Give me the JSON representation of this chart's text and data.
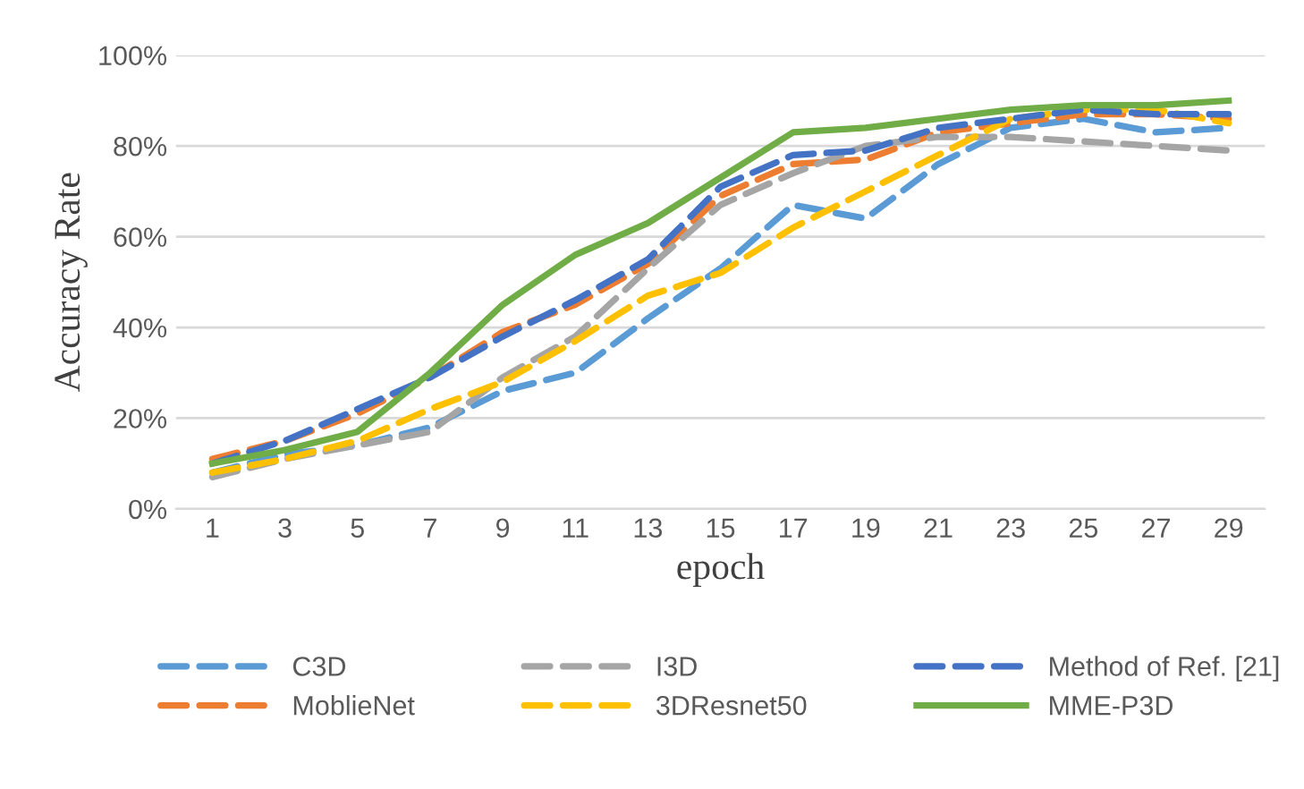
{
  "chart_data": {
    "type": "line",
    "xlabel": "epoch",
    "ylabel": "Accuracy Rate",
    "categories": [
      "1",
      "3",
      "5",
      "7",
      "9",
      "11",
      "13",
      "15",
      "17",
      "19",
      "21",
      "23",
      "25",
      "27",
      "29"
    ],
    "series": [
      {
        "name": "C3D",
        "color": "#5b9bd5",
        "line_style": "dashed",
        "values": [
          8,
          12,
          14,
          18,
          26,
          30,
          42,
          53,
          67,
          64,
          76,
          84,
          86,
          83,
          84
        ]
      },
      {
        "name": "MoblieNet",
        "color": "#ed7d31",
        "line_style": "dashed",
        "values": [
          11,
          15,
          21,
          29,
          39,
          45,
          54,
          69,
          76,
          77,
          83,
          85,
          87,
          87,
          86
        ]
      },
      {
        "name": "I3D",
        "color": "#a5a5a5",
        "line_style": "dashed",
        "values": [
          7,
          11,
          14,
          17,
          29,
          38,
          53,
          67,
          74,
          80,
          82,
          82,
          81,
          80,
          79
        ]
      },
      {
        "name": "3DResnet50",
        "color": "#ffc000",
        "line_style": "dashed",
        "values": [
          8,
          11,
          15,
          22,
          28,
          37,
          47,
          52,
          62,
          70,
          78,
          86,
          88,
          88,
          85
        ]
      },
      {
        "name": "Method of Ref. [21]",
        "color": "#4472c4",
        "line_style": "dashed",
        "values": [
          10,
          15,
          22,
          29,
          38,
          46,
          55,
          71,
          78,
          79,
          84,
          86,
          88,
          87,
          87
        ]
      },
      {
        "name": "MME-P3D",
        "color": "#70ad47",
        "line_style": "solid",
        "values": [
          10,
          13,
          17,
          30,
          45,
          56,
          63,
          73,
          83,
          84,
          86,
          88,
          89,
          89,
          90
        ]
      }
    ],
    "ylim": [
      0,
      100
    ],
    "yticks": [
      {
        "value": 0,
        "label": "0%"
      },
      {
        "value": 20,
        "label": "20%"
      },
      {
        "value": 40,
        "label": "40%"
      },
      {
        "value": 60,
        "label": "60%"
      },
      {
        "value": 80,
        "label": "80%"
      },
      {
        "value": 100,
        "label": "100%"
      }
    ],
    "grid": "y",
    "legend": "bottom",
    "marker": "none"
  }
}
